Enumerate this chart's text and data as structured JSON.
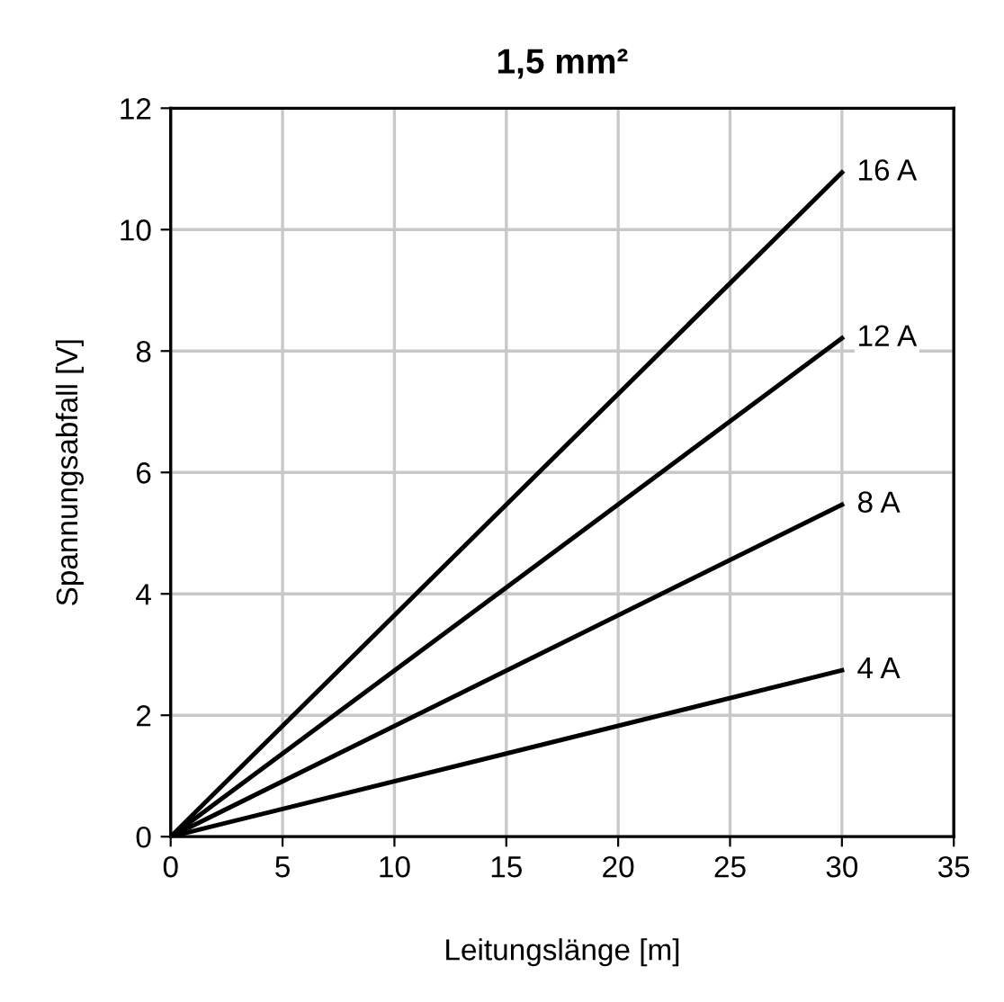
{
  "chart_data": {
    "type": "line",
    "title": "1,5 mm²",
    "xlabel": "Leitungslänge [m]",
    "ylabel": "Spannungsabfall [V]",
    "x": [
      0,
      30
    ],
    "series": [
      {
        "name": "16 A",
        "color": "#000000",
        "values": [
          0,
          10.94
        ]
      },
      {
        "name": "12 A",
        "color": "#000000",
        "values": [
          0,
          8.21
        ]
      },
      {
        "name": "8 A",
        "color": "#000000",
        "values": [
          0,
          5.47
        ]
      },
      {
        "name": "4 A",
        "color": "#000000",
        "values": [
          0,
          2.74
        ]
      }
    ],
    "xlim": [
      0,
      35
    ],
    "xticks": [
      0,
      5,
      10,
      15,
      20,
      25,
      30,
      35
    ],
    "ylim": [
      0,
      12
    ],
    "yticks": [
      0,
      2,
      4,
      6,
      8,
      10,
      12
    ],
    "grid": true,
    "legend": false,
    "marker": "none",
    "line_style": "solid"
  }
}
